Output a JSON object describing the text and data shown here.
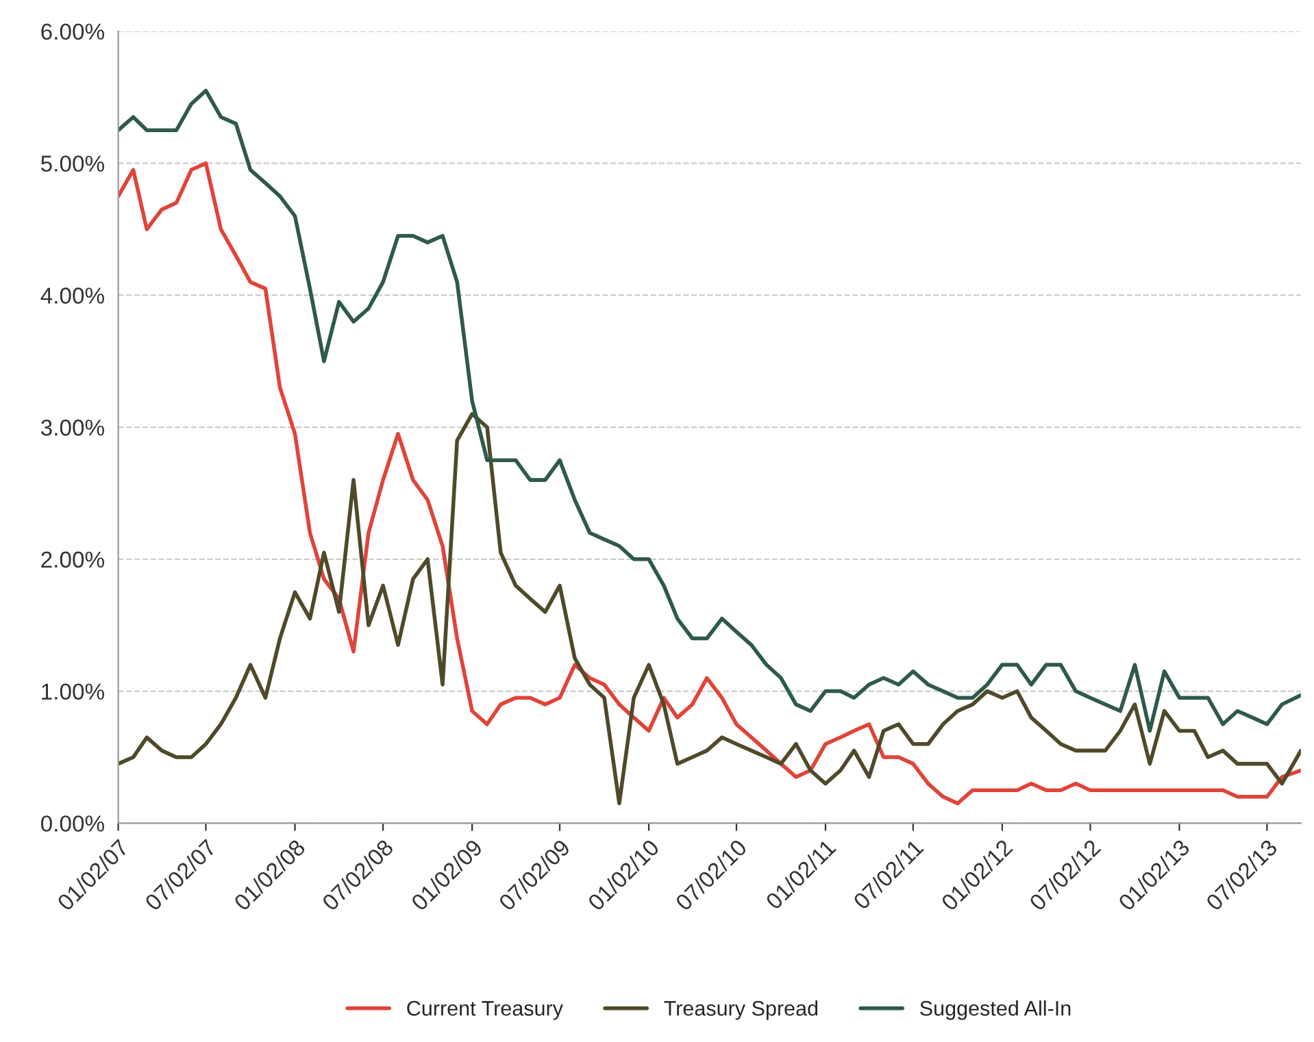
{
  "chart_data": {
    "type": "line",
    "x": [
      "2007-01-02",
      "2007-02-02",
      "2007-03-02",
      "2007-04-02",
      "2007-05-02",
      "2007-06-02",
      "2007-07-02",
      "2007-08-02",
      "2007-09-02",
      "2007-10-02",
      "2007-11-02",
      "2007-12-02",
      "2008-01-02",
      "2008-02-02",
      "2008-03-02",
      "2008-04-02",
      "2008-05-02",
      "2008-06-02",
      "2008-07-02",
      "2008-08-02",
      "2008-09-02",
      "2008-10-02",
      "2008-11-02",
      "2008-12-02",
      "2009-01-02",
      "2009-02-02",
      "2009-03-02",
      "2009-04-02",
      "2009-05-02",
      "2009-06-02",
      "2009-07-02",
      "2009-08-02",
      "2009-09-02",
      "2009-10-02",
      "2009-11-02",
      "2009-12-02",
      "2010-01-02",
      "2010-02-02",
      "2010-03-02",
      "2010-04-02",
      "2010-05-02",
      "2010-06-02",
      "2010-07-02",
      "2010-08-02",
      "2010-09-02",
      "2010-10-02",
      "2010-11-02",
      "2010-12-02",
      "2011-01-02",
      "2011-02-02",
      "2011-03-02",
      "2011-04-02",
      "2011-05-02",
      "2011-06-02",
      "2011-07-02",
      "2011-08-02",
      "2011-09-02",
      "2011-10-02",
      "2011-11-02",
      "2011-12-02",
      "2012-01-02",
      "2012-02-02",
      "2012-03-02",
      "2012-04-02",
      "2012-05-02",
      "2012-06-02",
      "2012-07-02",
      "2012-08-02",
      "2012-09-02",
      "2012-10-02",
      "2012-11-02",
      "2012-12-02",
      "2013-01-02",
      "2013-02-02",
      "2013-03-02",
      "2013-04-02",
      "2013-05-02",
      "2013-06-02",
      "2013-07-02",
      "2013-08-02",
      "2013-09-10"
    ],
    "series": [
      {
        "name": "Current Treasury",
        "color": "#e0443a",
        "values": [
          4.75,
          4.95,
          4.5,
          4.65,
          4.7,
          4.95,
          5.0,
          4.5,
          4.3,
          4.1,
          4.05,
          3.3,
          2.95,
          2.2,
          1.85,
          1.7,
          1.3,
          2.2,
          2.6,
          2.95,
          2.6,
          2.45,
          2.1,
          1.4,
          0.85,
          0.75,
          0.9,
          0.95,
          0.95,
          0.9,
          0.95,
          1.2,
          1.1,
          1.05,
          0.9,
          0.8,
          0.7,
          0.95,
          0.8,
          0.9,
          1.1,
          0.95,
          0.75,
          0.65,
          0.55,
          0.45,
          0.35,
          0.4,
          0.6,
          0.65,
          0.7,
          0.75,
          0.5,
          0.5,
          0.45,
          0.3,
          0.2,
          0.15,
          0.25,
          0.25,
          0.25,
          0.25,
          0.3,
          0.25,
          0.25,
          0.3,
          0.25,
          0.25,
          0.25,
          0.25,
          0.25,
          0.25,
          0.25,
          0.25,
          0.25,
          0.25,
          0.2,
          0.2,
          0.2,
          0.35,
          0.4
        ]
      },
      {
        "name": "Treasury Spread",
        "color": "#4e4a2a",
        "values": [
          0.45,
          0.5,
          0.65,
          0.55,
          0.5,
          0.5,
          0.6,
          0.75,
          0.95,
          1.2,
          0.95,
          1.4,
          1.75,
          1.55,
          2.05,
          1.6,
          2.6,
          1.5,
          1.8,
          1.35,
          1.85,
          2.0,
          1.05,
          2.9,
          3.1,
          3.0,
          2.05,
          1.8,
          1.7,
          1.6,
          1.8,
          1.25,
          1.05,
          0.95,
          0.15,
          0.95,
          1.2,
          0.9,
          0.45,
          0.5,
          0.55,
          0.65,
          0.6,
          0.55,
          0.5,
          0.45,
          0.6,
          0.4,
          0.3,
          0.4,
          0.55,
          0.35,
          0.7,
          0.75,
          0.6,
          0.6,
          0.75,
          0.85,
          0.9,
          1.0,
          0.95,
          1.0,
          0.8,
          0.7,
          0.6,
          0.55,
          0.55,
          0.55,
          0.7,
          0.9,
          0.45,
          0.85,
          0.7,
          0.7,
          0.5,
          0.55,
          0.45,
          0.45,
          0.45,
          0.3,
          0.55
        ]
      },
      {
        "name": "Suggested All-In",
        "color": "#2e5a4a",
        "values": [
          5.25,
          5.35,
          5.25,
          5.25,
          5.25,
          5.45,
          5.55,
          5.35,
          5.3,
          4.95,
          4.85,
          4.75,
          4.6,
          4.05,
          3.5,
          3.95,
          3.8,
          3.9,
          4.1,
          4.45,
          4.45,
          4.4,
          4.45,
          4.1,
          3.2,
          2.75,
          2.75,
          2.75,
          2.6,
          2.6,
          2.75,
          2.45,
          2.2,
          2.15,
          2.1,
          2.0,
          2.0,
          1.8,
          1.55,
          1.4,
          1.4,
          1.55,
          1.45,
          1.35,
          1.2,
          1.1,
          0.9,
          0.85,
          1.0,
          1.0,
          0.95,
          1.05,
          1.1,
          1.05,
          1.15,
          1.05,
          1.0,
          0.95,
          0.95,
          1.05,
          1.2,
          1.2,
          1.05,
          1.2,
          1.2,
          1.0,
          0.95,
          0.9,
          0.85,
          1.2,
          0.7,
          1.15,
          0.95,
          0.95,
          0.95,
          0.75,
          0.85,
          0.8,
          0.75,
          0.9,
          0.97
        ]
      }
    ],
    "xlim": [
      "2007-01-02",
      "2013-09-10"
    ],
    "xticks": [
      {
        "value": "2007-01-02",
        "label": "01/02/07"
      },
      {
        "value": "2007-07-02",
        "label": "07/02/07"
      },
      {
        "value": "2008-01-02",
        "label": "01/02/08"
      },
      {
        "value": "2008-07-02",
        "label": "07/02/08"
      },
      {
        "value": "2009-01-02",
        "label": "01/02/09"
      },
      {
        "value": "2009-07-02",
        "label": "07/02/09"
      },
      {
        "value": "2010-01-02",
        "label": "01/02/10"
      },
      {
        "value": "2010-07-02",
        "label": "07/02/10"
      },
      {
        "value": "2011-01-02",
        "label": "01/02/11"
      },
      {
        "value": "2011-07-02",
        "label": "07/02/11"
      },
      {
        "value": "2012-01-02",
        "label": "01/02/12"
      },
      {
        "value": "2012-07-02",
        "label": "07/02/12"
      },
      {
        "value": "2013-01-02",
        "label": "01/02/13"
      },
      {
        "value": "2013-07-02",
        "label": "07/02/13"
      }
    ],
    "ylim": [
      0,
      6
    ],
    "yticks": [
      {
        "value": 0,
        "label": "0.00%"
      },
      {
        "value": 1,
        "label": "1.00%"
      },
      {
        "value": 2,
        "label": "2.00%"
      },
      {
        "value": 3,
        "label": "3.00%"
      },
      {
        "value": 4,
        "label": "4.00%"
      },
      {
        "value": 5,
        "label": "5.00%"
      },
      {
        "value": 6,
        "label": "6.00%"
      }
    ],
    "grid": "y",
    "legend": "bottom",
    "line_style": "solid"
  }
}
